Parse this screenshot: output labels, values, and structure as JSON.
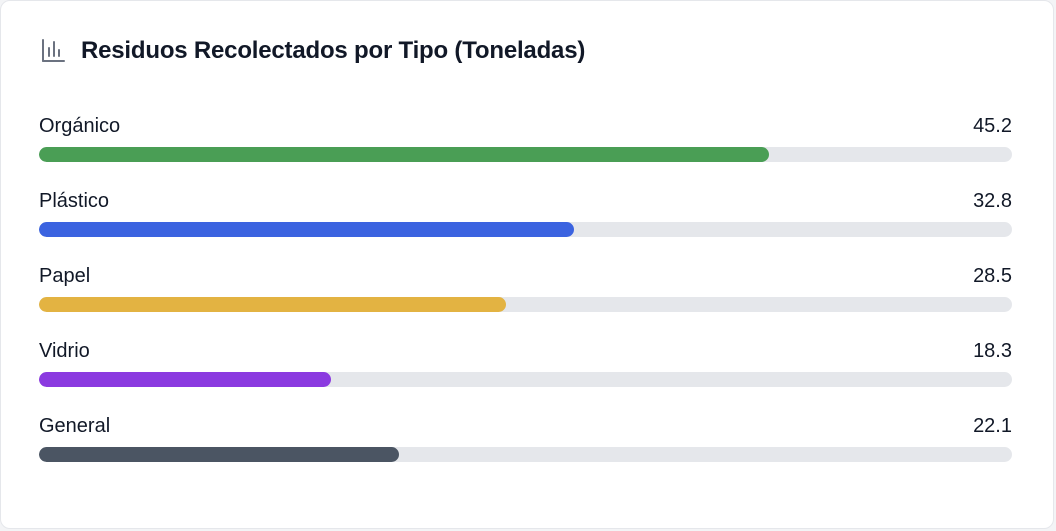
{
  "header": {
    "title": "Residuos Recolectados por Tipo (Toneladas)",
    "icon": "bar-chart-icon"
  },
  "chart_data": {
    "type": "bar",
    "orientation": "horizontal",
    "title": "Residuos Recolectados por Tipo (Toneladas)",
    "categories": [
      "Orgánico",
      "Plástico",
      "Papel",
      "Vidrio",
      "General"
    ],
    "values": [
      45.2,
      32.8,
      28.5,
      18.3,
      22.1
    ],
    "value_labels": [
      "45.2",
      "32.8",
      "28.5",
      "18.3",
      "22.1"
    ],
    "colors": [
      "#4a9e55",
      "#3b63e0",
      "#e3b342",
      "#8b3ae0",
      "#4b5563"
    ],
    "track_color": "#e5e7eb",
    "fill_fractions": [
      0.75,
      0.55,
      0.48,
      0.3,
      0.37
    ],
    "grid": false,
    "legend": "none"
  }
}
